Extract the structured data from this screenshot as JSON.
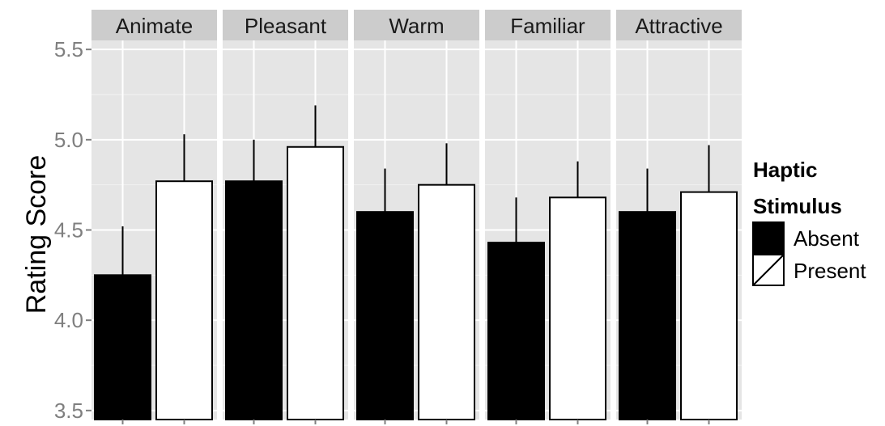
{
  "chart_data": {
    "type": "bar",
    "facets": [
      "Animate",
      "Pleasant",
      "Warm",
      "Familiar",
      "Attractive"
    ],
    "series": [
      {
        "name": "Absent",
        "values": [
          4.25,
          4.77,
          4.6,
          4.43,
          4.6
        ],
        "error_upper": [
          4.52,
          5.0,
          4.84,
          4.68,
          4.84
        ],
        "fill": "#000000"
      },
      {
        "name": "Present",
        "values": [
          4.77,
          4.96,
          4.75,
          4.68,
          4.71
        ],
        "error_upper": [
          5.03,
          5.19,
          4.98,
          4.88,
          4.97
        ],
        "fill": "#ffffff"
      }
    ],
    "ylabel": "Rating Score",
    "yticks": [
      "3.5",
      "4.0",
      "4.5",
      "5.0",
      "5.5"
    ],
    "ylim": [
      3.45,
      5.55
    ],
    "legend": {
      "title_line1": "Haptic",
      "title_line2": "Stimulus",
      "position": "right"
    },
    "grid": true,
    "colors": {
      "panel_bg": "#e5e5e5",
      "strip_bg": "#cccccc",
      "grid_major": "#ffffff",
      "grid_minor": "#f2f2f2"
    }
  }
}
